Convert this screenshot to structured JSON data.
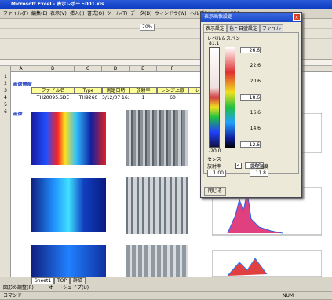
{
  "window": {
    "title": "Microsoft Excel - 表示レポート001.xls"
  },
  "menu": [
    "ファイル(F)",
    "編集(E)",
    "表示(V)",
    "挿入(I)",
    "書式(O)",
    "ツール(T)",
    "データ(D)",
    "ウィンドウ(W)",
    "ヘルプ(H)",
    "Adobe PDF"
  ],
  "toolbar": {
    "zoom": "70%"
  },
  "sheet": {
    "columns": [
      "A",
      "B",
      "C",
      "D",
      "E",
      "F",
      "G"
    ],
    "rows": [
      "1",
      "2",
      "3",
      "4",
      "5",
      "6"
    ],
    "section_info": "画像情報",
    "headers": [
      "ファイル名",
      "Type",
      "測定日時",
      "放射率",
      "レンジ上限",
      "レンジ"
    ],
    "record": [
      "TH20095.SDE",
      "TH9260",
      "3/12/07 16:01",
      "1",
      "60"
    ],
    "section_image": "画像"
  },
  "dialog": {
    "title": "表示画像設定",
    "tabs": [
      "表示設定",
      "色・目盛設定",
      "ファイル"
    ],
    "group": "レベル＆スパン",
    "max": "81.1",
    "min": "-20.0",
    "scale": [
      "26.6",
      "22.6",
      "20.6",
      "18.6",
      "16.6",
      "14.6",
      "12.6"
    ],
    "sense_label": "センス",
    "sense": "2.0",
    "emissivity_label": "放射率",
    "emissivity": "1.00",
    "ambient_label": "環境温度",
    "ambient": "11.8",
    "close": "閉じる"
  },
  "tabs": [
    "Sheet1",
    "TOP",
    "詳細"
  ],
  "draw_toolbar": {
    "adjust": "図形の調整(R)",
    "autoshape": "オートシェイプ(U)"
  },
  "status": {
    "left": "コマンド",
    "right": "NUM"
  }
}
